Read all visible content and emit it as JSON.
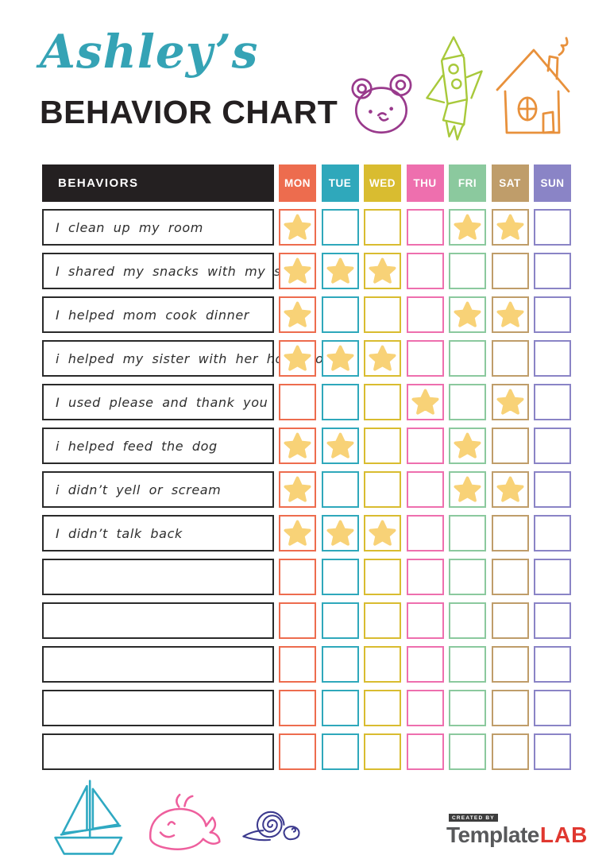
{
  "header": {
    "child_name": "Ashley’s",
    "title": "BEHAVIOR CHART"
  },
  "icons": {
    "top": [
      "bear-icon",
      "rocket-icon",
      "house-icon"
    ],
    "bottom": [
      "sailboat-icon",
      "whale-icon",
      "snail-icon"
    ],
    "cell_marker": "star-icon"
  },
  "table": {
    "behaviors_label": "BEHAVIORS",
    "days": [
      {
        "label": "MON",
        "color": "#ED6C4E"
      },
      {
        "label": "TUE",
        "color": "#2FA8BB"
      },
      {
        "label": "WED",
        "color": "#D9BC30"
      },
      {
        "label": "THU",
        "color": "#EE6FAE"
      },
      {
        "label": "FRI",
        "color": "#8BC99E"
      },
      {
        "label": "SAT",
        "color": "#BF9D6A"
      },
      {
        "label": "SUN",
        "color": "#8A84C6"
      }
    ],
    "star_color": "#F8D277",
    "rows": [
      {
        "label": "I clean up my room",
        "stars": [
          1,
          0,
          0,
          0,
          1,
          1,
          0
        ]
      },
      {
        "label": "I shared my snacks with my sister",
        "stars": [
          1,
          1,
          1,
          0,
          0,
          0,
          0
        ]
      },
      {
        "label": "I helped mom cook dinner",
        "stars": [
          1,
          0,
          0,
          0,
          1,
          1,
          0
        ]
      },
      {
        "label": "i helped my sister with her homework",
        "stars": [
          1,
          1,
          1,
          0,
          0,
          0,
          0
        ]
      },
      {
        "label": "I used please and thank you",
        "stars": [
          0,
          0,
          0,
          1,
          0,
          1,
          0
        ]
      },
      {
        "label": "i helped feed the dog",
        "stars": [
          1,
          1,
          0,
          0,
          1,
          0,
          0
        ]
      },
      {
        "label": "i didn’t yell or scream",
        "stars": [
          1,
          0,
          0,
          0,
          1,
          1,
          0
        ]
      },
      {
        "label": "I didn’t talk back",
        "stars": [
          1,
          1,
          1,
          0,
          0,
          0,
          0
        ]
      },
      {
        "label": "",
        "stars": [
          0,
          0,
          0,
          0,
          0,
          0,
          0
        ]
      },
      {
        "label": "",
        "stars": [
          0,
          0,
          0,
          0,
          0,
          0,
          0
        ]
      },
      {
        "label": "",
        "stars": [
          0,
          0,
          0,
          0,
          0,
          0,
          0
        ]
      },
      {
        "label": "",
        "stars": [
          0,
          0,
          0,
          0,
          0,
          0,
          0
        ]
      },
      {
        "label": "",
        "stars": [
          0,
          0,
          0,
          0,
          0,
          0,
          0
        ]
      }
    ]
  },
  "footer": {
    "logo": {
      "created_by": "CREATED BY",
      "brand": "Template",
      "brand_accent": "LAB"
    }
  },
  "colors": {
    "title_script": "#35A3B5",
    "title_main": "#242021",
    "table_header_bg": "#242021",
    "bear": "#993A8C",
    "rocket": "#A8C93B",
    "house": "#E8913C",
    "sailboat": "#2FA9C2",
    "whale": "#EE5F9D",
    "snail": "#3C3A8E",
    "logo_gray": "#58595B",
    "logo_red": "#E03830"
  }
}
